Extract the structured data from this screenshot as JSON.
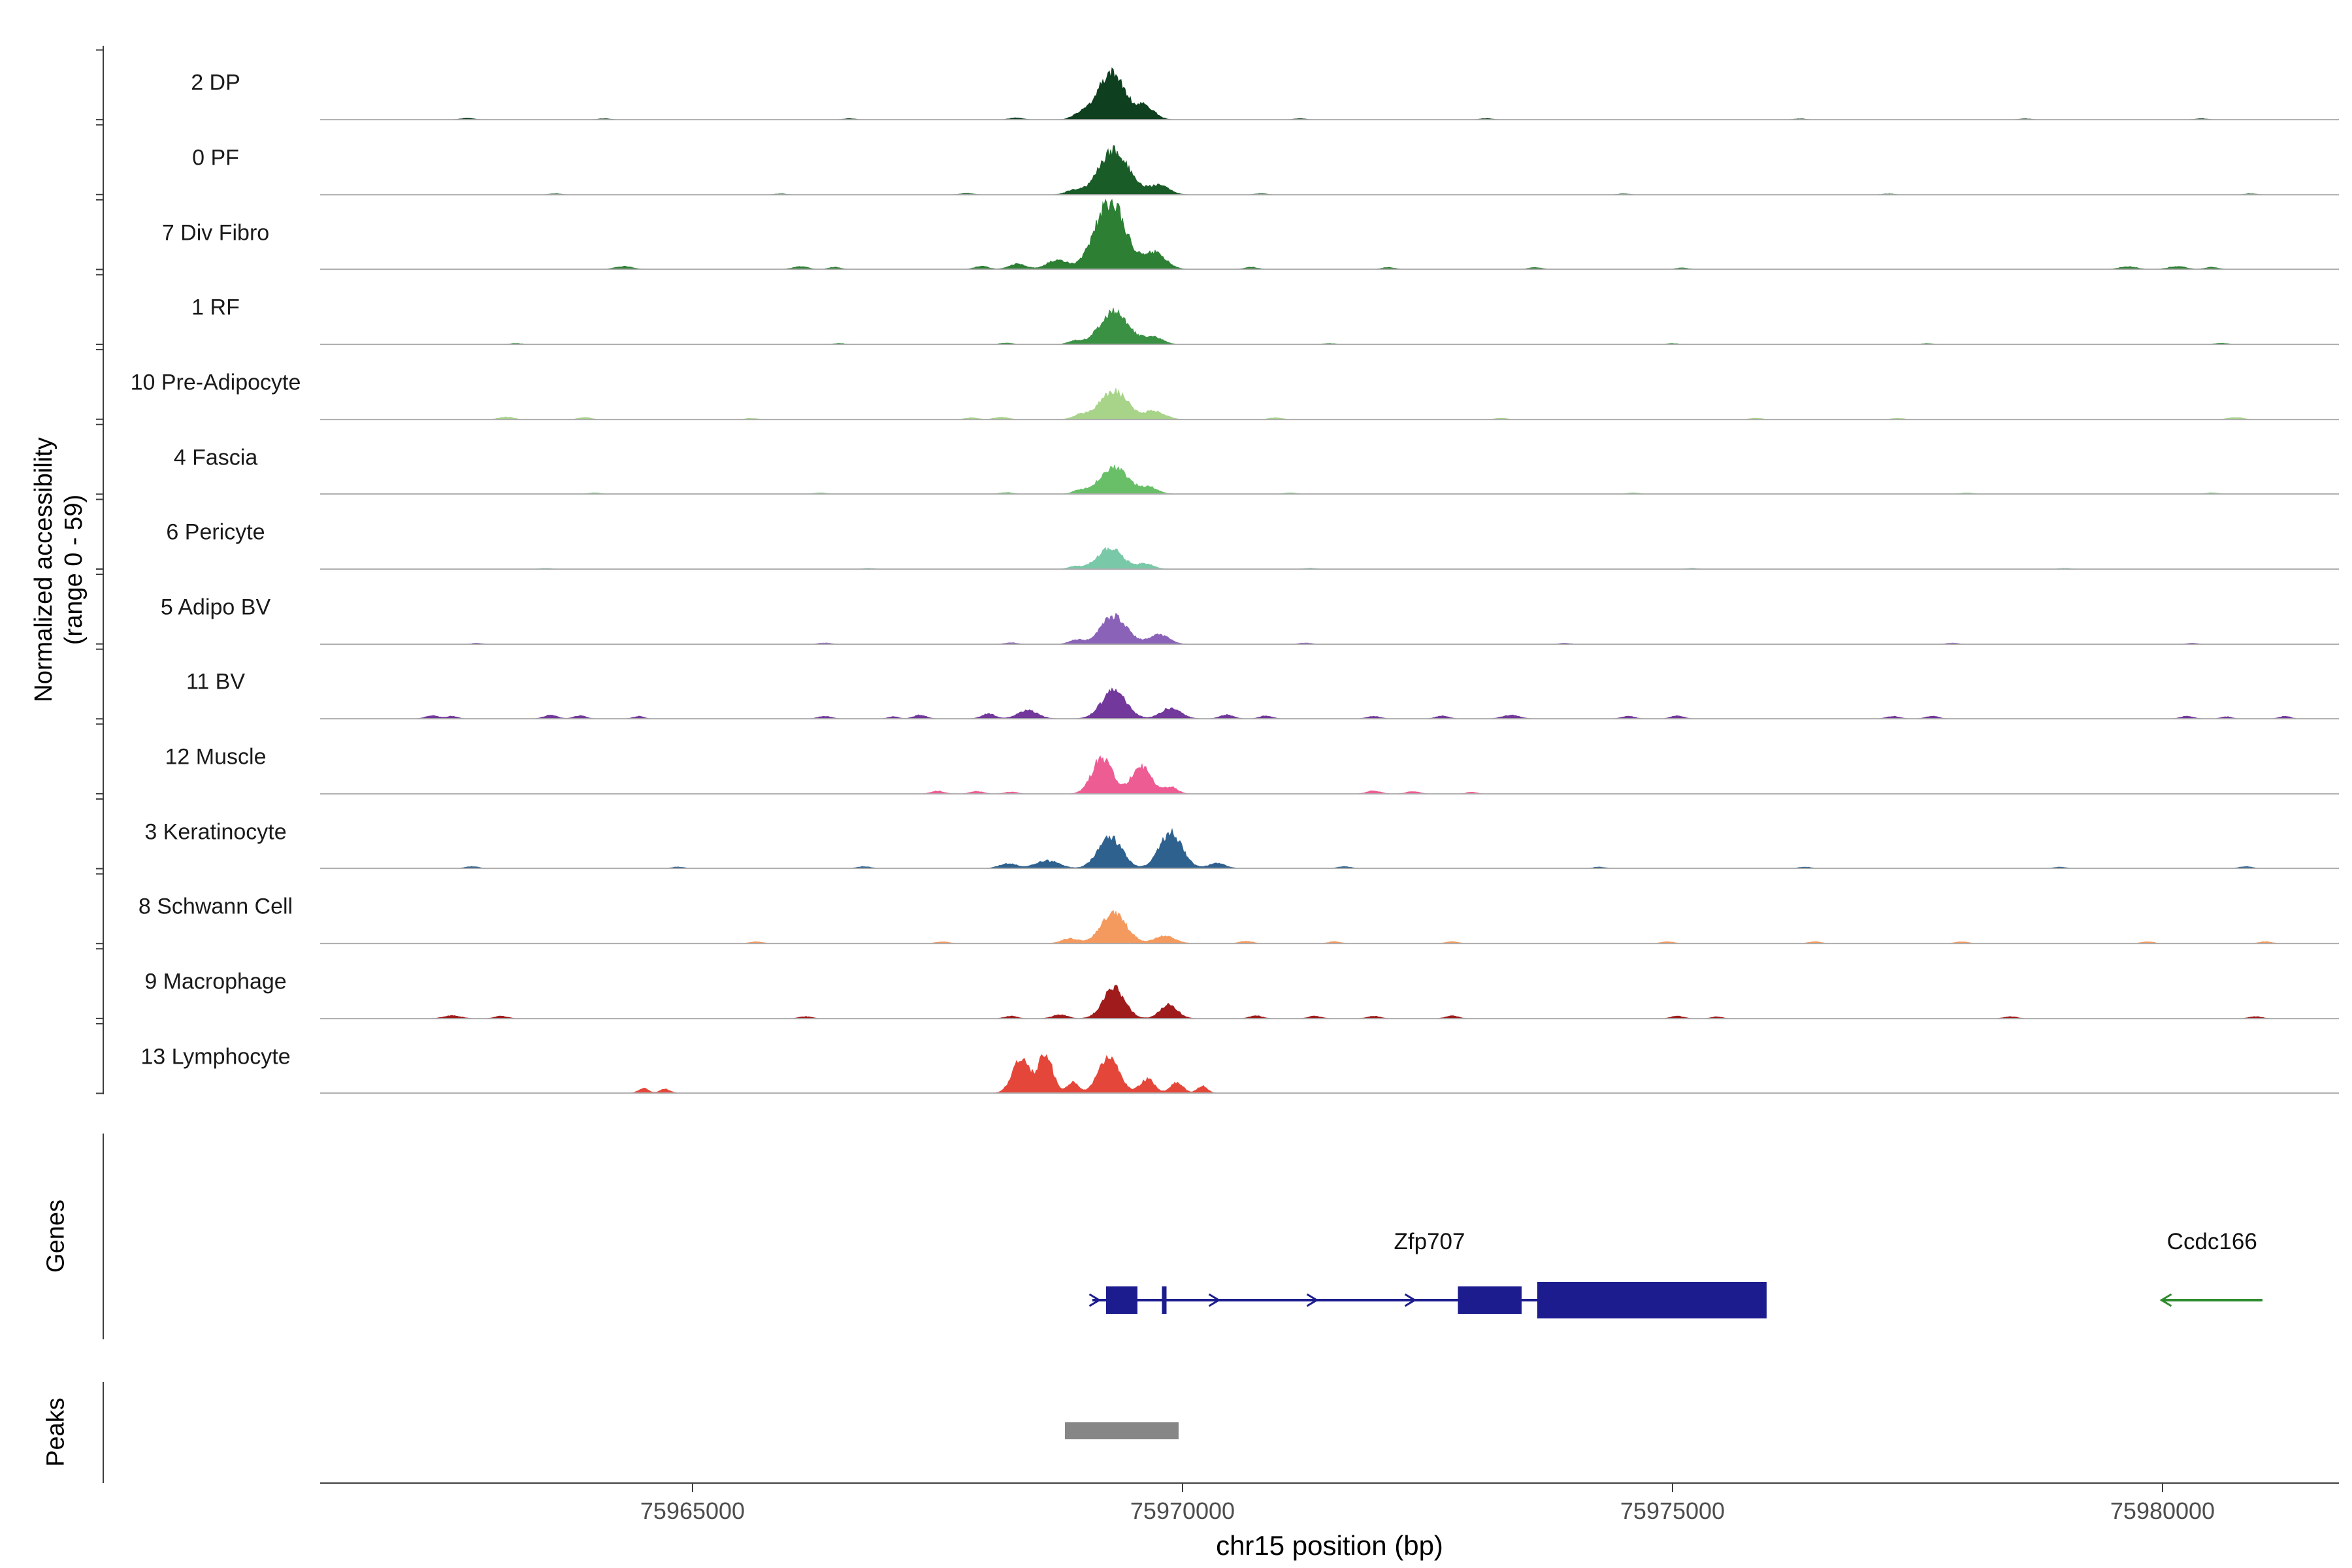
{
  "figure": {
    "y_axis_label_line1": "Normalized accessibility",
    "y_axis_label_line2": "(range 0 - 59)",
    "genes_panel_label": "Genes",
    "peaks_panel_label": "Peaks"
  },
  "chart_data": {
    "type": "area",
    "xlabel": "chr15 position (bp)",
    "ylabel": "Normalized accessibility (range 0 - 59)",
    "x_range_bp": [
      75961200,
      75981800
    ],
    "y_range": [
      0,
      59
    ],
    "x_ticks": [
      75965000,
      75970000,
      75975000,
      75980000
    ],
    "grid": false,
    "tracks": [
      {
        "name": "2 DP",
        "color": "#0e3f1e",
        "peaks": [
          [
            75969270,
            330,
            40
          ],
          [
            75969620,
            220,
            11
          ],
          [
            75968950,
            180,
            4
          ],
          [
            75962700,
            160,
            1.1
          ],
          [
            75964100,
            140,
            0.8
          ],
          [
            75966600,
            140,
            0.8
          ],
          [
            75968300,
            160,
            1.4
          ],
          [
            75971200,
            140,
            0.8
          ],
          [
            75973100,
            140,
            0.9
          ],
          [
            75976300,
            140,
            0.7
          ],
          [
            75978600,
            140,
            0.7
          ],
          [
            75980400,
            140,
            0.8
          ]
        ]
      },
      {
        "name": "0 PF",
        "color": "#1a5c28",
        "peaks": [
          [
            75969300,
            360,
            38
          ],
          [
            75969760,
            240,
            8
          ],
          [
            75968880,
            180,
            3.5
          ],
          [
            75963600,
            140,
            0.8
          ],
          [
            75965900,
            140,
            0.7
          ],
          [
            75967800,
            150,
            1.1
          ],
          [
            75970800,
            140,
            0.9
          ],
          [
            75974500,
            140,
            0.7
          ],
          [
            75977200,
            140,
            0.7
          ],
          [
            75980900,
            140,
            0.8
          ]
        ]
      },
      {
        "name": "7 Div Fibro",
        "color": "#2c7f33",
        "peaks": [
          [
            75969260,
            360,
            59
          ],
          [
            75969720,
            260,
            14
          ],
          [
            75968720,
            240,
            8
          ],
          [
            75968320,
            200,
            4.5
          ],
          [
            75964300,
            200,
            2.4
          ],
          [
            75966100,
            180,
            2.2
          ],
          [
            75966450,
            140,
            1.7
          ],
          [
            75967950,
            160,
            2.6
          ],
          [
            75970700,
            150,
            1.7
          ],
          [
            75972100,
            150,
            1.5
          ],
          [
            75973600,
            150,
            1.5
          ],
          [
            75975100,
            140,
            1.1
          ],
          [
            75979650,
            200,
            2.1
          ],
          [
            75980150,
            200,
            2.4
          ],
          [
            75980500,
            150,
            1.7
          ]
        ]
      },
      {
        "name": "1 RF",
        "color": "#3a9143",
        "peaks": [
          [
            75969300,
            340,
            28
          ],
          [
            75969700,
            220,
            6.5
          ],
          [
            75968900,
            160,
            2.8
          ],
          [
            75963200,
            140,
            0.8
          ],
          [
            75966500,
            140,
            0.8
          ],
          [
            75968200,
            150,
            1.1
          ],
          [
            75971500,
            140,
            0.8
          ],
          [
            75975000,
            140,
            0.7
          ],
          [
            75977600,
            140,
            0.7
          ],
          [
            75980600,
            150,
            1.0
          ]
        ]
      },
      {
        "name": "10 Pre-Adipocyte",
        "color": "#a7d489",
        "peaks": [
          [
            75969300,
            340,
            24
          ],
          [
            75969720,
            240,
            7
          ],
          [
            75968950,
            180,
            3.5
          ],
          [
            75963100,
            170,
            2.1
          ],
          [
            75963900,
            150,
            1.7
          ],
          [
            75965600,
            140,
            1.0
          ],
          [
            75967850,
            150,
            1.5
          ],
          [
            75968150,
            170,
            1.9
          ],
          [
            75970950,
            150,
            1.5
          ],
          [
            75973250,
            140,
            1.1
          ],
          [
            75975850,
            140,
            1.1
          ],
          [
            75977300,
            140,
            1.0
          ],
          [
            75980750,
            180,
            1.7
          ]
        ]
      },
      {
        "name": "4 Fascia",
        "color": "#69bf68",
        "peaks": [
          [
            75969300,
            330,
            23
          ],
          [
            75969660,
            210,
            5.5
          ],
          [
            75968950,
            160,
            2.8
          ],
          [
            75964000,
            140,
            0.9
          ],
          [
            75966300,
            140,
            0.8
          ],
          [
            75968200,
            150,
            1.2
          ],
          [
            75971100,
            140,
            0.9
          ],
          [
            75974600,
            140,
            0.8
          ],
          [
            75978000,
            140,
            0.8
          ],
          [
            75980500,
            140,
            0.9
          ]
        ]
      },
      {
        "name": "6 Pericyte",
        "color": "#79c9a9",
        "peaks": [
          [
            75969260,
            300,
            18
          ],
          [
            75969620,
            200,
            4.5
          ],
          [
            75968900,
            160,
            2.0
          ],
          [
            75963500,
            140,
            0.7
          ],
          [
            75966800,
            140,
            0.7
          ],
          [
            75971300,
            140,
            0.8
          ],
          [
            75975200,
            140,
            0.7
          ],
          [
            75979000,
            140,
            0.7
          ]
        ]
      },
      {
        "name": "5 Adipo BV",
        "color": "#8a63b8",
        "peaks": [
          [
            75969300,
            310,
            24
          ],
          [
            75969760,
            240,
            8
          ],
          [
            75968920,
            180,
            3.5
          ],
          [
            75962800,
            140,
            0.9
          ],
          [
            75966350,
            150,
            1.1
          ],
          [
            75968250,
            150,
            1.3
          ],
          [
            75971250,
            150,
            1.1
          ],
          [
            75973900,
            140,
            0.9
          ],
          [
            75977850,
            150,
            1.0
          ],
          [
            75980300,
            140,
            0.9
          ]
        ]
      },
      {
        "name": "11 BV",
        "color": "#72389b",
        "peaks": [
          [
            75969300,
            290,
            24
          ],
          [
            75969880,
            240,
            9
          ],
          [
            75968420,
            240,
            7
          ],
          [
            75968020,
            160,
            4.2
          ],
          [
            75967320,
            150,
            3.2
          ],
          [
            75962350,
            160,
            2.6
          ],
          [
            75962550,
            120,
            2.1
          ],
          [
            75963550,
            160,
            3.0
          ],
          [
            75963850,
            140,
            2.6
          ],
          [
            75964450,
            120,
            2.1
          ],
          [
            75966350,
            150,
            2.1
          ],
          [
            75967050,
            120,
            1.7
          ],
          [
            75970450,
            160,
            3.4
          ],
          [
            75970850,
            150,
            2.4
          ],
          [
            75971950,
            150,
            2.1
          ],
          [
            75972650,
            150,
            2.4
          ],
          [
            75973350,
            200,
            3.0
          ],
          [
            75974550,
            150,
            2.1
          ],
          [
            75975050,
            150,
            2.4
          ],
          [
            75977250,
            150,
            2.1
          ],
          [
            75977650,
            150,
            2.1
          ],
          [
            75980250,
            150,
            2.1
          ],
          [
            75980650,
            120,
            1.7
          ],
          [
            75981250,
            130,
            2.1
          ]
        ]
      },
      {
        "name": "12 Muscle",
        "color": "#ee5c94",
        "peaks": [
          [
            75969180,
            240,
            31
          ],
          [
            75969580,
            240,
            23
          ],
          [
            75969880,
            160,
            6
          ],
          [
            75967500,
            150,
            2.4
          ],
          [
            75967900,
            150,
            2.1
          ],
          [
            75968250,
            140,
            1.7
          ],
          [
            75971950,
            160,
            2.6
          ],
          [
            75972350,
            150,
            2.1
          ],
          [
            75972950,
            120,
            1.5
          ]
        ]
      },
      {
        "name": "3 Keratinocyte",
        "color": "#2f618f",
        "peaks": [
          [
            75969260,
            280,
            27
          ],
          [
            75969880,
            270,
            30
          ],
          [
            75968620,
            280,
            6.5
          ],
          [
            75968220,
            200,
            4.2
          ],
          [
            75970350,
            200,
            4.2
          ],
          [
            75962750,
            150,
            1.5
          ],
          [
            75964850,
            140,
            1.1
          ],
          [
            75966750,
            150,
            1.5
          ],
          [
            75971650,
            150,
            1.5
          ],
          [
            75974250,
            140,
            1.1
          ],
          [
            75976350,
            140,
            1.1
          ],
          [
            75978950,
            140,
            1.1
          ],
          [
            75980850,
            150,
            1.5
          ]
        ]
      },
      {
        "name": "8 Schwann Cell",
        "color": "#f59a5f",
        "peaks": [
          [
            75969300,
            300,
            26
          ],
          [
            75969820,
            240,
            6.5
          ],
          [
            75968850,
            200,
            4.2
          ],
          [
            75965650,
            150,
            1.5
          ],
          [
            75967550,
            150,
            1.5
          ],
          [
            75970650,
            160,
            1.9
          ],
          [
            75971550,
            150,
            1.5
          ],
          [
            75972750,
            150,
            1.5
          ],
          [
            75974950,
            150,
            1.5
          ],
          [
            75976450,
            150,
            1.5
          ],
          [
            75977950,
            150,
            1.5
          ],
          [
            75979850,
            150,
            1.5
          ],
          [
            75981050,
            150,
            1.5
          ]
        ]
      },
      {
        "name": "9 Macrophage",
        "color": "#a01c1c",
        "peaks": [
          [
            75969300,
            260,
            26
          ],
          [
            75969860,
            210,
            12
          ],
          [
            75968750,
            180,
            3.2
          ],
          [
            75962550,
            200,
            2.6
          ],
          [
            75963050,
            150,
            2.1
          ],
          [
            75966150,
            150,
            1.7
          ],
          [
            75968250,
            150,
            2.1
          ],
          [
            75970750,
            150,
            2.4
          ],
          [
            75971350,
            150,
            2.1
          ],
          [
            75971950,
            150,
            2.1
          ],
          [
            75972750,
            150,
            2.4
          ],
          [
            75975050,
            150,
            2.1
          ],
          [
            75975450,
            120,
            1.7
          ],
          [
            75978450,
            150,
            1.7
          ],
          [
            75980950,
            150,
            1.7
          ]
        ]
      },
      {
        "name": "13 Lymphocyte",
        "color": "#e4473a",
        "peaks": [
          [
            75968350,
            200,
            30
          ],
          [
            75968600,
            170,
            34
          ],
          [
            75968880,
            140,
            9
          ],
          [
            75969250,
            240,
            32
          ],
          [
            75969640,
            170,
            12
          ],
          [
            75969940,
            150,
            9
          ],
          [
            75970200,
            120,
            6
          ],
          [
            75964500,
            120,
            4
          ],
          [
            75964720,
            120,
            3.4
          ]
        ]
      }
    ],
    "genes": [
      {
        "name": "Zfp707",
        "color": "#1c1c8f",
        "strand": "+",
        "start": 75969080,
        "end": 75975960,
        "exons": [
          [
            75969220,
            75969540,
            0
          ],
          [
            75969790,
            75969835,
            0
          ],
          [
            75972810,
            75973460,
            0
          ],
          [
            75973620,
            75975960,
            1
          ]
        ],
        "arrows": [
          75969130,
          75970350,
          75971350,
          75972350
        ]
      },
      {
        "name": "Ccdc166",
        "color": "#2e8b2e",
        "strand": "-",
        "start": 75979990,
        "end": 75981020,
        "exons": [],
        "arrows": [
          75979990
        ]
      }
    ],
    "peak_calls": [
      {
        "start": 75968800,
        "end": 75969960,
        "color": "#868686"
      }
    ]
  }
}
